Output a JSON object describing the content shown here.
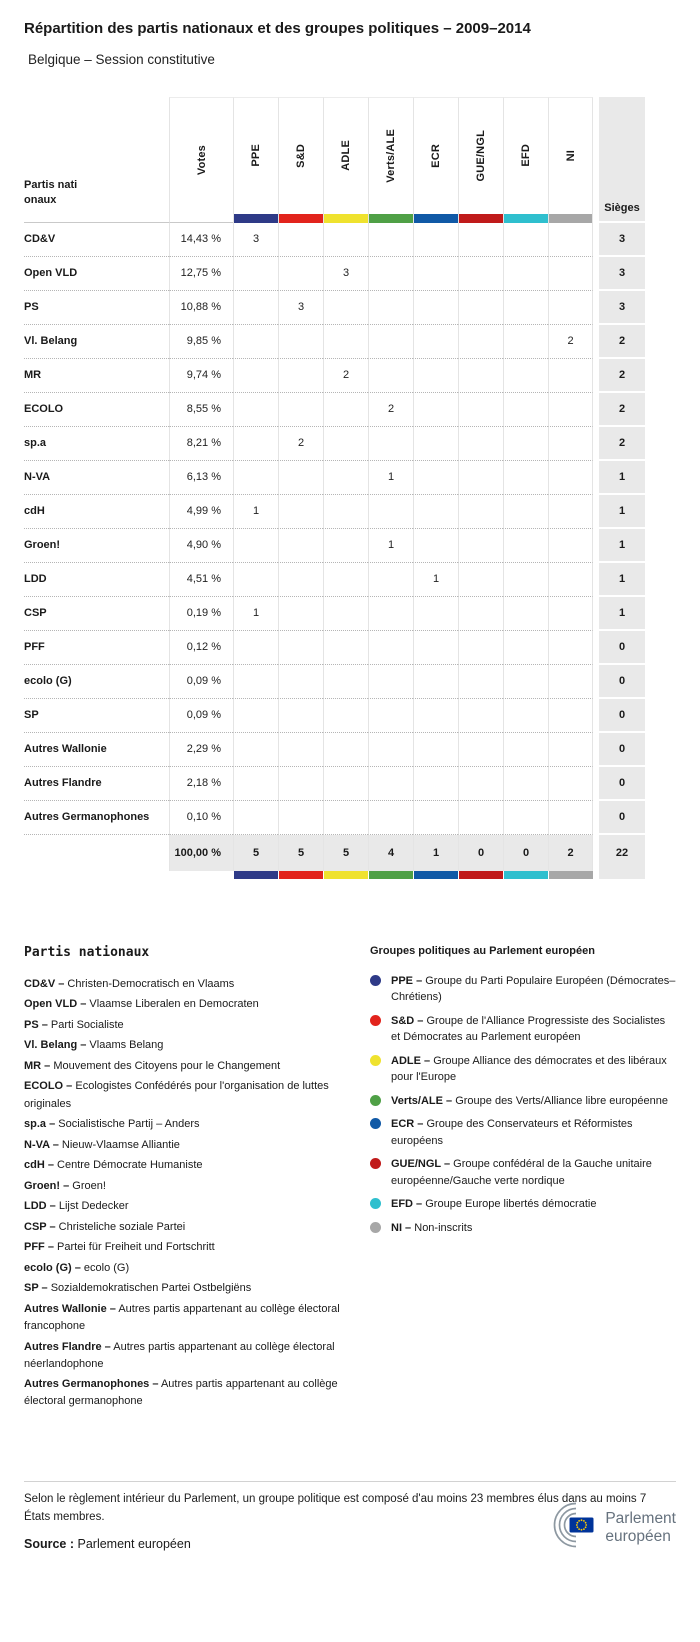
{
  "chart_data": {
    "type": "table",
    "title": "Répartition des partis nationaux et des groupes politiques – 2009–2014",
    "subtitle": "Belgique – Session constitutive",
    "row_header": "Partis nationaux",
    "votes_header": "Votes",
    "seats_header": "Sièges",
    "groups": [
      {
        "label": "PPE",
        "color": "#2e3a87"
      },
      {
        "label": "S&D",
        "color": "#e2231c"
      },
      {
        "label": "ADLE",
        "color": "#efe22e"
      },
      {
        "label": "Verts/ALE",
        "color": "#4fa046"
      },
      {
        "label": "ECR",
        "color": "#1059a6"
      },
      {
        "label": "GUE/NGL",
        "color": "#c01a1a"
      },
      {
        "label": "EFD",
        "color": "#2fbfce"
      },
      {
        "label": "NI",
        "color": "#a7a7a7"
      }
    ],
    "rows": [
      {
        "party": "CD&V",
        "votes": "14,43 %",
        "seats_by_group": [
          "3",
          "",
          "",
          "",
          "",
          "",
          "",
          ""
        ],
        "seats": "3"
      },
      {
        "party": "Open VLD",
        "votes": "12,75 %",
        "seats_by_group": [
          "",
          "",
          "3",
          "",
          "",
          "",
          "",
          ""
        ],
        "seats": "3"
      },
      {
        "party": "PS",
        "votes": "10,88 %",
        "seats_by_group": [
          "",
          "3",
          "",
          "",
          "",
          "",
          "",
          ""
        ],
        "seats": "3"
      },
      {
        "party": "Vl. Belang",
        "votes": "9,85 %",
        "seats_by_group": [
          "",
          "",
          "",
          "",
          "",
          "",
          "",
          "2"
        ],
        "seats": "2"
      },
      {
        "party": "MR",
        "votes": "9,74 %",
        "seats_by_group": [
          "",
          "",
          "2",
          "",
          "",
          "",
          "",
          ""
        ],
        "seats": "2"
      },
      {
        "party": "ECOLO",
        "votes": "8,55 %",
        "seats_by_group": [
          "",
          "",
          "",
          "2",
          "",
          "",
          "",
          ""
        ],
        "seats": "2"
      },
      {
        "party": "sp.a",
        "votes": "8,21 %",
        "seats_by_group": [
          "",
          "2",
          "",
          "",
          "",
          "",
          "",
          ""
        ],
        "seats": "2"
      },
      {
        "party": "N-VA",
        "votes": "6,13 %",
        "seats_by_group": [
          "",
          "",
          "",
          "1",
          "",
          "",
          "",
          ""
        ],
        "seats": "1"
      },
      {
        "party": "cdH",
        "votes": "4,99 %",
        "seats_by_group": [
          "1",
          "",
          "",
          "",
          "",
          "",
          "",
          ""
        ],
        "seats": "1"
      },
      {
        "party": "Groen!",
        "votes": "4,90 %",
        "seats_by_group": [
          "",
          "",
          "",
          "1",
          "",
          "",
          "",
          ""
        ],
        "seats": "1"
      },
      {
        "party": "LDD",
        "votes": "4,51 %",
        "seats_by_group": [
          "",
          "",
          "",
          "",
          "1",
          "",
          "",
          ""
        ],
        "seats": "1"
      },
      {
        "party": "CSP",
        "votes": "0,19 %",
        "seats_by_group": [
          "1",
          "",
          "",
          "",
          "",
          "",
          "",
          ""
        ],
        "seats": "1"
      },
      {
        "party": "PFF",
        "votes": "0,12 %",
        "seats_by_group": [
          "",
          "",
          "",
          "",
          "",
          "",
          "",
          ""
        ],
        "seats": "0"
      },
      {
        "party": "ecolo (G)",
        "votes": "0,09 %",
        "seats_by_group": [
          "",
          "",
          "",
          "",
          "",
          "",
          "",
          ""
        ],
        "seats": "0"
      },
      {
        "party": "SP",
        "votes": "0,09 %",
        "seats_by_group": [
          "",
          "",
          "",
          "",
          "",
          "",
          "",
          ""
        ],
        "seats": "0"
      },
      {
        "party": "Autres Wallonie",
        "votes": "2,29 %",
        "seats_by_group": [
          "",
          "",
          "",
          "",
          "",
          "",
          "",
          ""
        ],
        "seats": "0"
      },
      {
        "party": "Autres Flandre",
        "votes": "2,18 %",
        "seats_by_group": [
          "",
          "",
          "",
          "",
          "",
          "",
          "",
          ""
        ],
        "seats": "0"
      },
      {
        "party": "Autres Germanophones",
        "votes": "0,10 %",
        "seats_by_group": [
          "",
          "",
          "",
          "",
          "",
          "",
          "",
          ""
        ],
        "seats": "0"
      }
    ],
    "total": {
      "votes": "100,00 %",
      "seats_by_group": [
        "5",
        "5",
        "5",
        "4",
        "1",
        "0",
        "0",
        "2"
      ],
      "seats": "22"
    }
  },
  "legend_parties": {
    "title": "Partis nationaux",
    "items": [
      {
        "abbr": "CD&V –",
        "name": "Christen-Democratisch en Vlaams"
      },
      {
        "abbr": "Open VLD –",
        "name": "Vlaamse Liberalen en Democraten"
      },
      {
        "abbr": "PS –",
        "name": "Parti Socialiste"
      },
      {
        "abbr": "Vl. Belang –",
        "name": "Vlaams Belang"
      },
      {
        "abbr": "MR –",
        "name": "Mouvement des Citoyens pour le Changement"
      },
      {
        "abbr": "ECOLO –",
        "name": "Ecologistes Confédérés pour l'organisation de luttes originales"
      },
      {
        "abbr": "sp.a –",
        "name": "Socialistische Partij – Anders"
      },
      {
        "abbr": "N-VA –",
        "name": "Nieuw-Vlaamse Alliantie"
      },
      {
        "abbr": "cdH –",
        "name": "Centre Démocrate Humaniste"
      },
      {
        "abbr": "Groen! –",
        "name": "Groen!"
      },
      {
        "abbr": "LDD –",
        "name": "Lijst Dedecker"
      },
      {
        "abbr": "CSP –",
        "name": "Christeliche soziale Partei"
      },
      {
        "abbr": "PFF –",
        "name": "Partei für Freiheit und Fortschritt"
      },
      {
        "abbr": "ecolo (G) –",
        "name": "ecolo (G)"
      },
      {
        "abbr": "SP –",
        "name": "Sozialdemokratischen Partei Ostbelgiëns"
      },
      {
        "abbr": "Autres Wallonie –",
        "name": "Autres partis appartenant au collège électoral francophone"
      },
      {
        "abbr": "Autres Flandre –",
        "name": "Autres partis appartenant au collège électoral néerlandophone"
      },
      {
        "abbr": "Autres Germanophones –",
        "name": "Autres partis appartenant au collège électoral germanophone"
      }
    ]
  },
  "legend_groups": {
    "title": "Groupes politiques au Parlement européen",
    "items": [
      {
        "group": "PPE",
        "abbr": "PPE –",
        "name": "Groupe du Parti Populaire Européen (Démocrates–Chrétiens)"
      },
      {
        "group": "S&D",
        "abbr": "S&D –",
        "name": "Groupe de l'Alliance Progressiste des Socialistes et Démocrates au Parlement européen"
      },
      {
        "group": "ADLE",
        "abbr": "ADLE –",
        "name": "Groupe Alliance des démocrates et des libéraux pour l'Europe"
      },
      {
        "group": "Verts/ALE",
        "abbr": "Verts/ALE –",
        "name": "Groupe des Verts/Alliance libre européenne"
      },
      {
        "group": "ECR",
        "abbr": "ECR –",
        "name": "Groupe des Conservateurs et Réformistes européens"
      },
      {
        "group": "GUE/NGL",
        "abbr": "GUE/NGL –",
        "name": "Groupe confédéral de la Gauche unitaire européenne/Gauche verte nordique"
      },
      {
        "group": "EFD",
        "abbr": "EFD –",
        "name": "Groupe Europe libertés démocratie"
      },
      {
        "group": "NI",
        "abbr": "NI –",
        "name": "Non-inscrits"
      }
    ]
  },
  "footer": {
    "note": "Selon le règlement intérieur du Parlement, un groupe politique est composé d'au moins 23 membres élus dans au moins 7 États membres.",
    "source_label": "Source :",
    "source_value": "Parlement européen",
    "logo_line1": "Parlement",
    "logo_line2": "européen",
    "logo_flag_color": "#003399",
    "logo_star_color": "#ffcc00",
    "logo_arc_color": "#8d98a1"
  }
}
